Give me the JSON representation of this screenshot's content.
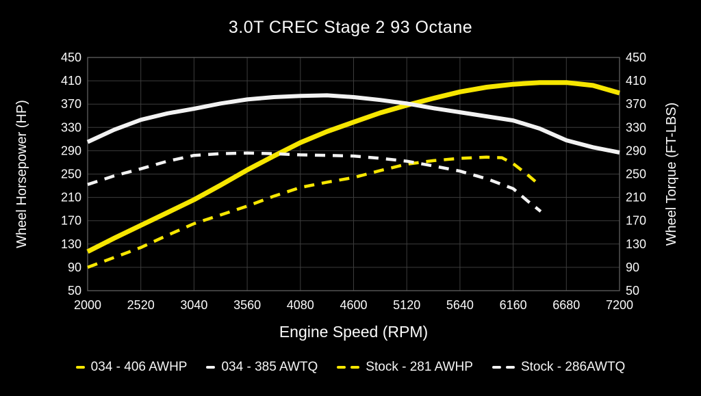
{
  "title": "3.0T CREC Stage 2 93 Octane",
  "colors": {
    "background": "#000000",
    "text": "#fafafa",
    "grid": "#3d3d3d",
    "plot_border": "#5f5f5f",
    "yellow": "#f6e600",
    "white_curve": "#f2f2f2"
  },
  "legend": [
    {
      "label": "034 - 406 AWHP",
      "color": "#f6e600",
      "style": "solid"
    },
    {
      "label": "034 - 385 AWTQ",
      "color": "#f2f2f2",
      "style": "solid"
    },
    {
      "label": "Stock - 281 AWHP",
      "color": "#f6e600",
      "style": "dashed"
    },
    {
      "label": "Stock - 286AWTQ",
      "color": "#f2f2f2",
      "style": "dashed"
    }
  ],
  "chart_data": {
    "type": "line",
    "title": "3.0T CREC Stage 2 93 Octane",
    "xlabel": "Engine Speed (RPM)",
    "ylabel_left": "Wheel Horsepower (HP)",
    "ylabel_right": "Wheel Torque (FT-LBS)",
    "xlim": [
      2000,
      7200
    ],
    "ylim": [
      50,
      450
    ],
    "x_ticks": [
      2000,
      2520,
      3040,
      3560,
      4080,
      4600,
      5120,
      5640,
      6160,
      6680,
      7200
    ],
    "y_ticks": [
      50,
      90,
      130,
      170,
      210,
      250,
      290,
      330,
      370,
      410,
      450
    ],
    "grid": true,
    "legend_position": "bottom",
    "series": [
      {
        "name": "034 - 406 AWHP",
        "color": "#f6e600",
        "style": "solid",
        "width": 7,
        "x": [
          2000,
          2260,
          2520,
          2780,
          3040,
          3300,
          3560,
          3820,
          4080,
          4340,
          4600,
          4860,
          5120,
          5380,
          5640,
          5900,
          6160,
          6420,
          6680,
          6940,
          7200
        ],
        "y": [
          117,
          140,
          162,
          184,
          206,
          231,
          257,
          281,
          304,
          323,
          339,
          355,
          368,
          380,
          391,
          399,
          404,
          407,
          407,
          402,
          389
        ]
      },
      {
        "name": "034 - 385 AWTQ",
        "color": "#f2f2f2",
        "style": "solid",
        "width": 6,
        "x": [
          2000,
          2260,
          2520,
          2780,
          3040,
          3300,
          3560,
          3820,
          4080,
          4340,
          4600,
          4860,
          5120,
          5380,
          5640,
          5900,
          6160,
          6420,
          6680,
          6940,
          7200
        ],
        "y": [
          305,
          326,
          343,
          354,
          362,
          371,
          378,
          382,
          384,
          385,
          382,
          377,
          371,
          363,
          356,
          349,
          342,
          328,
          308,
          296,
          287
        ]
      },
      {
        "name": "Stock - 281 AWHP",
        "color": "#f6e600",
        "style": "dashed",
        "width": 4.5,
        "x": [
          2000,
          2260,
          2520,
          2780,
          3040,
          3300,
          3560,
          3820,
          4080,
          4340,
          4600,
          4860,
          5120,
          5380,
          5640,
          5900,
          6050,
          6160,
          6300,
          6420
        ],
        "y": [
          90,
          107,
          124,
          145,
          165,
          180,
          195,
          212,
          227,
          236,
          244,
          256,
          267,
          273,
          277,
          279,
          278,
          268,
          249,
          231
        ]
      },
      {
        "name": "Stock - 286AWTQ",
        "color": "#f2f2f2",
        "style": "dashed",
        "width": 4.5,
        "x": [
          2000,
          2260,
          2520,
          2780,
          3040,
          3300,
          3560,
          3820,
          4080,
          4340,
          4600,
          4860,
          5120,
          5380,
          5640,
          5900,
          6160,
          6300,
          6430
        ],
        "y": [
          232,
          247,
          259,
          272,
          282,
          285,
          286,
          285,
          283,
          282,
          281,
          277,
          272,
          264,
          255,
          242,
          225,
          204,
          186
        ]
      }
    ]
  }
}
